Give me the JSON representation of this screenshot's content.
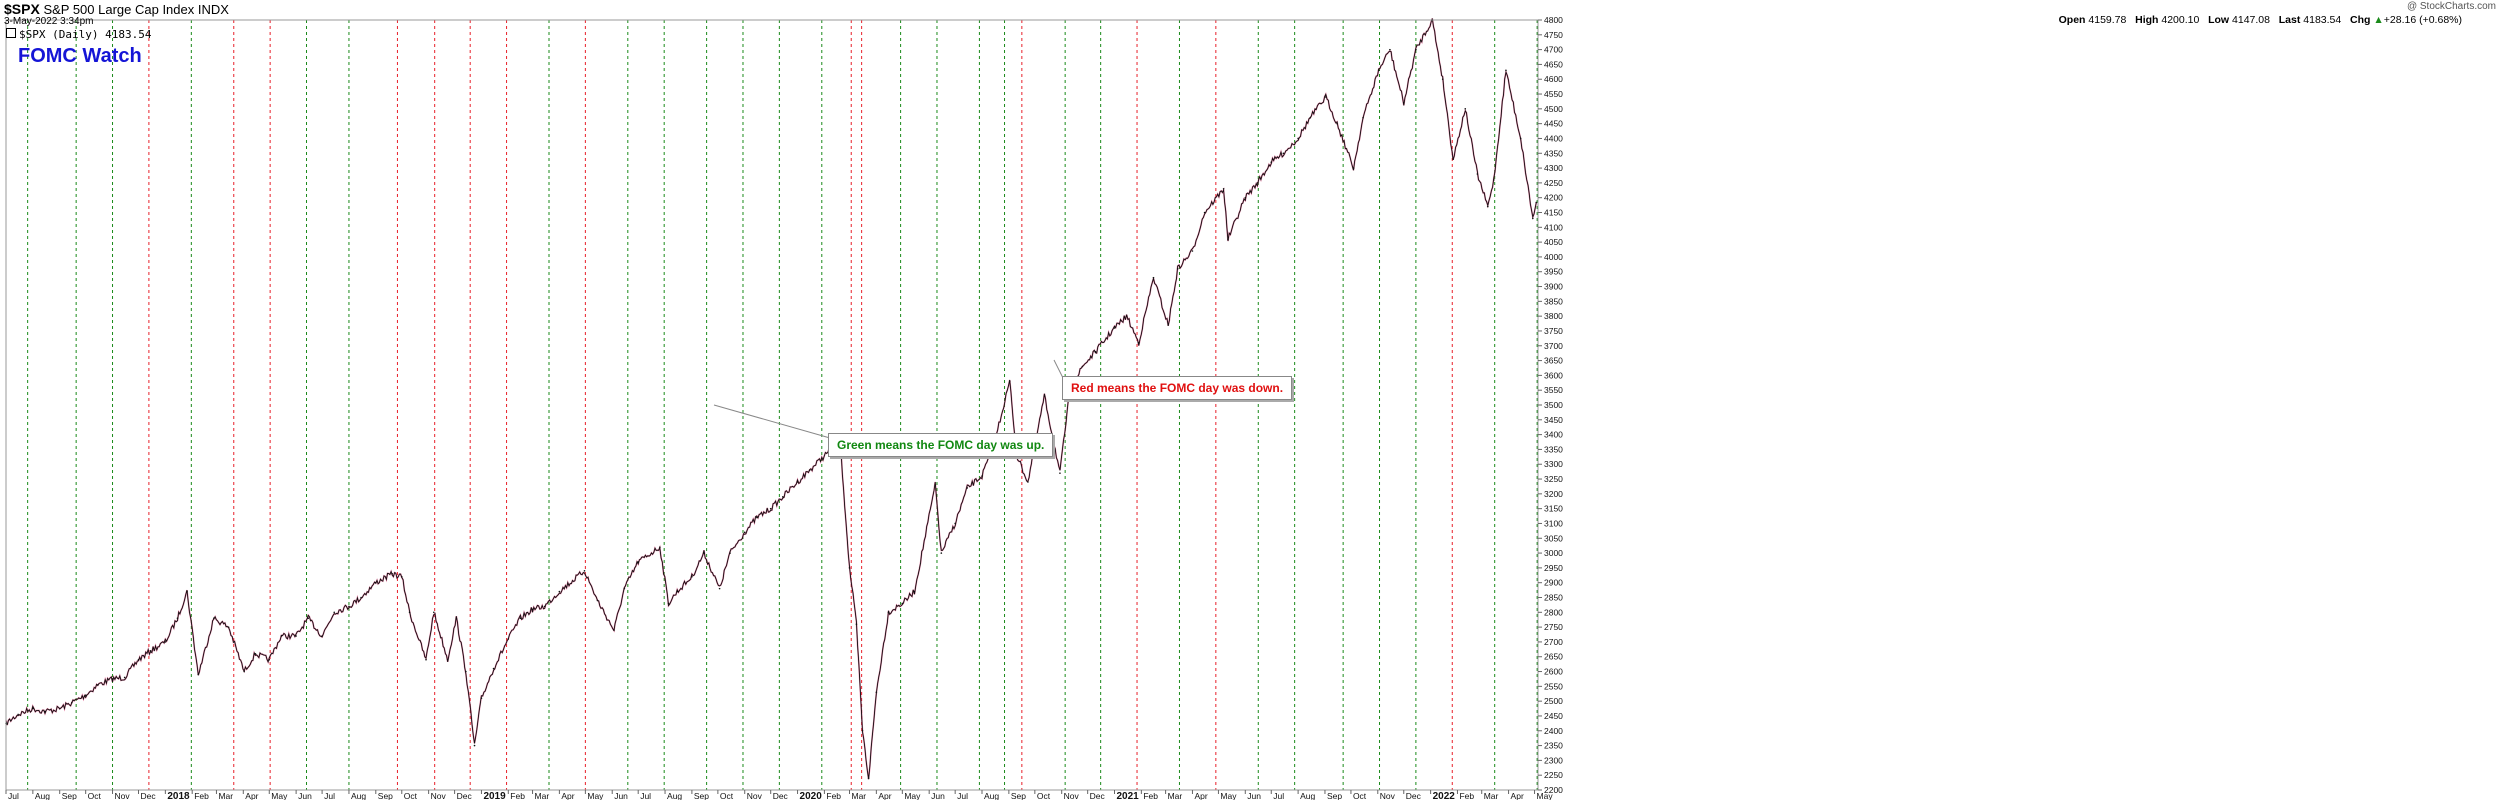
{
  "header": {
    "symbol": "$SPX",
    "name": "S&P 500 Large Cap Index",
    "exchange": "INDX",
    "date": "3-May-2022 3:34pm",
    "legend": "$SPX (Daily) 4183.54",
    "copyright": "@ StockCharts.com",
    "ohlc": {
      "open_label": "Open",
      "open": "4159.78",
      "high_label": "High",
      "high": "4200.10",
      "low_label": "Low",
      "low": "4147.08",
      "last_label": "Last",
      "last": "4183.54",
      "chg_label": "Chg",
      "chg": "+28.16 (+0.68%)",
      "chg_arrow": "▲"
    }
  },
  "fomc_title": "FOMC Watch",
  "annotations": {
    "green_note": "Green means the FOMC day was up.",
    "red_note": "Red means the FOMC day was down."
  },
  "colors": {
    "up_line": "#1a8a1a",
    "down_line": "#e8202a",
    "up_note_text": "#118811",
    "down_note_text": "#e01010",
    "title_text": "#1515d6",
    "price_line": "#111111",
    "price_accent": "#d81b60"
  },
  "chart_data": {
    "type": "line",
    "series": [
      {
        "x": [
          "2017-07-01",
          "2017-07-15",
          "2017-08-01",
          "2017-08-15",
          "2017-09-01",
          "2017-09-15",
          "2017-10-01",
          "2017-10-15",
          "2017-11-01",
          "2017-11-15",
          "2017-12-01",
          "2017-12-15",
          "2018-01-01",
          "2018-01-15",
          "2018-01-26",
          "2018-02-08",
          "2018-02-26",
          "2018-03-15",
          "2018-04-02",
          "2018-04-15",
          "2018-05-01",
          "2018-05-15",
          "2018-06-01",
          "2018-06-15",
          "2018-07-01",
          "2018-07-15",
          "2018-08-01",
          "2018-08-15",
          "2018-09-01",
          "2018-09-20",
          "2018-10-01",
          "2018-10-10",
          "2018-10-29",
          "2018-11-07",
          "2018-11-23",
          "2018-12-03",
          "2018-12-14",
          "2018-12-24",
          "2019-01-01",
          "2019-01-15",
          "2019-02-01",
          "2019-02-15",
          "2019-03-01",
          "2019-03-15",
          "2019-04-01",
          "2019-04-30",
          "2019-05-15",
          "2019-06-03",
          "2019-06-15",
          "2019-07-01",
          "2019-07-26",
          "2019-08-05",
          "2019-08-15",
          "2019-09-01",
          "2019-09-15",
          "2019-10-03",
          "2019-10-15",
          "2019-11-01",
          "2019-11-15",
          "2019-12-01",
          "2019-12-15",
          "2020-01-01",
          "2020-01-15",
          "2020-02-19",
          "2020-03-01",
          "2020-03-09",
          "2020-03-16",
          "2020-03-23",
          "2020-04-01",
          "2020-04-15",
          "2020-05-01",
          "2020-05-15",
          "2020-06-08",
          "2020-06-15",
          "2020-07-01",
          "2020-07-15",
          "2020-08-01",
          "2020-08-15",
          "2020-09-02",
          "2020-09-10",
          "2020-09-23",
          "2020-10-12",
          "2020-10-30",
          "2020-11-10",
          "2020-11-25",
          "2020-12-10",
          "2021-01-01",
          "2021-01-15",
          "2021-01-29",
          "2021-02-15",
          "2021-03-04",
          "2021-03-15",
          "2021-04-01",
          "2021-04-15",
          "2021-05-07",
          "2021-05-12",
          "2021-06-01",
          "2021-06-15",
          "2021-07-01",
          "2021-07-15",
          "2021-08-01",
          "2021-08-15",
          "2021-09-02",
          "2021-09-15",
          "2021-10-04",
          "2021-10-15",
          "2021-11-02",
          "2021-11-15",
          "2021-12-01",
          "2021-12-15",
          "2022-01-03",
          "2022-01-15",
          "2022-01-27",
          "2022-02-10",
          "2022-02-24",
          "2022-03-08",
          "2022-03-15",
          "2022-03-29",
          "2022-04-15",
          "2022-04-29",
          "2022-05-03"
        ],
        "y": [
          2425,
          2455,
          2475,
          2465,
          2475,
          2495,
          2520,
          2555,
          2575,
          2580,
          2640,
          2670,
          2700,
          2780,
          2870,
          2590,
          2780,
          2750,
          2600,
          2660,
          2640,
          2720,
          2720,
          2780,
          2720,
          2800,
          2820,
          2850,
          2900,
          2930,
          2920,
          2800,
          2640,
          2800,
          2640,
          2780,
          2600,
          2350,
          2510,
          2610,
          2710,
          2780,
          2810,
          2820,
          2870,
          2940,
          2840,
          2740,
          2880,
          2970,
          3020,
          2830,
          2870,
          2920,
          3000,
          2880,
          3000,
          3070,
          3120,
          3150,
          3190,
          3240,
          3280,
          3380,
          2950,
          2760,
          2400,
          2240,
          2530,
          2800,
          2830,
          2870,
          3230,
          3000,
          3100,
          3220,
          3260,
          3370,
          3580,
          3330,
          3240,
          3530,
          3270,
          3540,
          3630,
          3680,
          3760,
          3800,
          3710,
          3930,
          3770,
          3960,
          4020,
          4150,
          4230,
          4060,
          4200,
          4250,
          4320,
          4350,
          4400,
          4470,
          4540,
          4450,
          4300,
          4470,
          4630,
          4700,
          4520,
          4700,
          4800,
          4600,
          4330,
          4500,
          4280,
          4170,
          4260,
          4630,
          4400,
          4130,
          4184
        ]
      }
    ],
    "fomc_up": [
      "2017-07-26",
      "2017-09-20",
      "2017-11-01",
      "2018-01-31",
      "2018-06-13",
      "2018-08-01",
      "2019-03-20",
      "2019-06-19",
      "2019-07-31",
      "2019-09-18",
      "2019-10-30",
      "2019-12-11",
      "2020-01-29",
      "2020-04-29",
      "2020-06-10",
      "2020-07-29",
      "2020-08-27",
      "2020-11-05",
      "2020-12-16",
      "2021-03-17",
      "2021-06-16",
      "2021-07-28",
      "2021-09-22",
      "2021-11-03",
      "2021-12-15",
      "2022-03-16",
      "2022-05-04"
    ],
    "fomc_down": [
      "2017-12-13",
      "2018-03-21",
      "2018-05-02",
      "2018-09-26",
      "2018-11-08",
      "2018-12-19",
      "2019-01-30",
      "2019-05-01",
      "2020-03-03",
      "2020-03-15",
      "2020-09-16",
      "2021-01-27",
      "2021-04-28",
      "2022-01-26"
    ],
    "x_ticks": [
      "Jul",
      "Aug",
      "Sep",
      "Oct",
      "Nov",
      "Dec",
      "2018",
      "Feb",
      "Mar",
      "Apr",
      "May",
      "Jun",
      "Jul",
      "Aug",
      "Sep",
      "Oct",
      "Nov",
      "Dec",
      "2019",
      "Feb",
      "Mar",
      "Apr",
      "May",
      "Jun",
      "Jul",
      "Aug",
      "Sep",
      "Oct",
      "Nov",
      "Dec",
      "2020",
      "Feb",
      "Mar",
      "Apr",
      "May",
      "Jun",
      "Jul",
      "Aug",
      "Sep",
      "Oct",
      "Nov",
      "Dec",
      "2021",
      "Feb",
      "Mar",
      "Apr",
      "May",
      "Jun",
      "Jul",
      "Aug",
      "Sep",
      "Oct",
      "Nov",
      "Dec",
      "2022",
      "Feb",
      "Mar",
      "Apr",
      "May"
    ],
    "x_tick_dates": [
      "2017-07-01",
      "2017-08-01",
      "2017-09-01",
      "2017-10-01",
      "2017-11-01",
      "2017-12-01",
      "2018-01-01",
      "2018-02-01",
      "2018-03-01",
      "2018-04-01",
      "2018-05-01",
      "2018-06-01",
      "2018-07-01",
      "2018-08-01",
      "2018-09-01",
      "2018-10-01",
      "2018-11-01",
      "2018-12-01",
      "2019-01-01",
      "2019-02-01",
      "2019-03-01",
      "2019-04-01",
      "2019-05-01",
      "2019-06-01",
      "2019-07-01",
      "2019-08-01",
      "2019-09-01",
      "2019-10-01",
      "2019-11-01",
      "2019-12-01",
      "2020-01-01",
      "2020-02-01",
      "2020-03-01",
      "2020-04-01",
      "2020-05-01",
      "2020-06-01",
      "2020-07-01",
      "2020-08-01",
      "2020-09-01",
      "2020-10-01",
      "2020-11-01",
      "2020-12-01",
      "2021-01-01",
      "2021-02-01",
      "2021-03-01",
      "2021-04-01",
      "2021-05-01",
      "2021-06-01",
      "2021-07-01",
      "2021-08-01",
      "2021-09-01",
      "2021-10-01",
      "2021-11-01",
      "2021-12-01",
      "2022-01-01",
      "2022-02-01",
      "2022-03-01",
      "2022-04-01",
      "2022-05-01"
    ],
    "xlim": [
      "2017-07-01",
      "2022-05-05"
    ],
    "ylim": [
      2200,
      4800
    ],
    "y_tick_step": 50,
    "y_axis_side": "right",
    "grid": false,
    "title": "FOMC Watch"
  }
}
